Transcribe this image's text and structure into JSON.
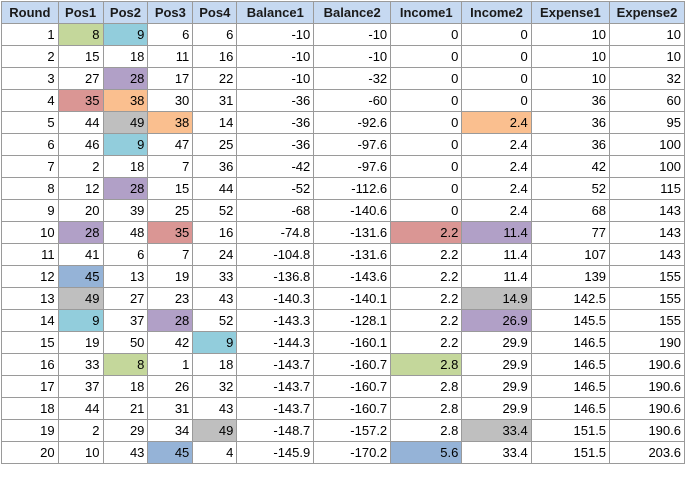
{
  "colors": {
    "header_bg": "#c6d9f1",
    "green": "#c4d79b",
    "cyan": "#92cddc",
    "purple": "#b1a0c7",
    "red": "#da9694",
    "orange": "#fabf8f",
    "gray": "#bfbfbf",
    "blue": "#95b3d7"
  },
  "sheet": {
    "columns": [
      "Round",
      "Pos1",
      "Pos2",
      "Pos3",
      "Pos4",
      "Balance1",
      "Balance2",
      "Income1",
      "Income2",
      "Expense1",
      "Expense2"
    ],
    "rows": [
      [
        "1",
        "8",
        "9",
        "6",
        "6",
        "-10",
        "-10",
        "0",
        "0",
        "10",
        "10"
      ],
      [
        "2",
        "15",
        "18",
        "11",
        "16",
        "-10",
        "-10",
        "0",
        "0",
        "10",
        "10"
      ],
      [
        "3",
        "27",
        "28",
        "17",
        "22",
        "-10",
        "-32",
        "0",
        "0",
        "10",
        "32"
      ],
      [
        "4",
        "35",
        "38",
        "30",
        "31",
        "-36",
        "-60",
        "0",
        "0",
        "36",
        "60"
      ],
      [
        "5",
        "44",
        "49",
        "38",
        "14",
        "-36",
        "-92.6",
        "0",
        "2.4",
        "36",
        "95"
      ],
      [
        "6",
        "46",
        "9",
        "47",
        "25",
        "-36",
        "-97.6",
        "0",
        "2.4",
        "36",
        "100"
      ],
      [
        "7",
        "2",
        "18",
        "7",
        "36",
        "-42",
        "-97.6",
        "0",
        "2.4",
        "42",
        "100"
      ],
      [
        "8",
        "12",
        "28",
        "15",
        "44",
        "-52",
        "-112.6",
        "0",
        "2.4",
        "52",
        "115"
      ],
      [
        "9",
        "20",
        "39",
        "25",
        "52",
        "-68",
        "-140.6",
        "0",
        "2.4",
        "68",
        "143"
      ],
      [
        "10",
        "28",
        "48",
        "35",
        "16",
        "-74.8",
        "-131.6",
        "2.2",
        "11.4",
        "77",
        "143"
      ],
      [
        "11",
        "41",
        "6",
        "7",
        "24",
        "-104.8",
        "-131.6",
        "2.2",
        "11.4",
        "107",
        "143"
      ],
      [
        "12",
        "45",
        "13",
        "19",
        "33",
        "-136.8",
        "-143.6",
        "2.2",
        "11.4",
        "139",
        "155"
      ],
      [
        "13",
        "49",
        "27",
        "23",
        "43",
        "-140.3",
        "-140.1",
        "2.2",
        "14.9",
        "142.5",
        "155"
      ],
      [
        "14",
        "9",
        "37",
        "28",
        "52",
        "-143.3",
        "-128.1",
        "2.2",
        "26.9",
        "145.5",
        "155"
      ],
      [
        "15",
        "19",
        "50",
        "42",
        "9",
        "-144.3",
        "-160.1",
        "2.2",
        "29.9",
        "146.5",
        "190"
      ],
      [
        "16",
        "33",
        "8",
        "1",
        "18",
        "-143.7",
        "-160.7",
        "2.8",
        "29.9",
        "146.5",
        "190.6"
      ],
      [
        "17",
        "37",
        "18",
        "26",
        "32",
        "-143.7",
        "-160.7",
        "2.8",
        "29.9",
        "146.5",
        "190.6"
      ],
      [
        "18",
        "44",
        "21",
        "31",
        "43",
        "-143.7",
        "-160.7",
        "2.8",
        "29.9",
        "146.5",
        "190.6"
      ],
      [
        "19",
        "2",
        "29",
        "34",
        "49",
        "-148.7",
        "-157.2",
        "2.8",
        "33.4",
        "151.5",
        "190.6"
      ],
      [
        "20",
        "10",
        "43",
        "45",
        "4",
        "-145.9",
        "-170.2",
        "5.6",
        "33.4",
        "151.5",
        "203.6"
      ]
    ],
    "highlights": [
      {
        "row": 0,
        "col": 1,
        "color": "green"
      },
      {
        "row": 0,
        "col": 2,
        "color": "cyan"
      },
      {
        "row": 2,
        "col": 2,
        "color": "purple"
      },
      {
        "row": 3,
        "col": 1,
        "color": "red"
      },
      {
        "row": 3,
        "col": 2,
        "color": "orange"
      },
      {
        "row": 4,
        "col": 2,
        "color": "gray"
      },
      {
        "row": 4,
        "col": 3,
        "color": "orange"
      },
      {
        "row": 4,
        "col": 8,
        "color": "orange"
      },
      {
        "row": 5,
        "col": 2,
        "color": "cyan"
      },
      {
        "row": 7,
        "col": 2,
        "color": "purple"
      },
      {
        "row": 9,
        "col": 1,
        "color": "purple"
      },
      {
        "row": 9,
        "col": 3,
        "color": "red"
      },
      {
        "row": 9,
        "col": 7,
        "color": "red"
      },
      {
        "row": 9,
        "col": 8,
        "color": "purple"
      },
      {
        "row": 11,
        "col": 1,
        "color": "blue"
      },
      {
        "row": 12,
        "col": 1,
        "color": "gray"
      },
      {
        "row": 12,
        "col": 8,
        "color": "gray"
      },
      {
        "row": 13,
        "col": 1,
        "color": "cyan"
      },
      {
        "row": 13,
        "col": 3,
        "color": "purple"
      },
      {
        "row": 13,
        "col": 8,
        "color": "purple"
      },
      {
        "row": 14,
        "col": 4,
        "color": "cyan"
      },
      {
        "row": 15,
        "col": 2,
        "color": "green"
      },
      {
        "row": 15,
        "col": 7,
        "color": "green"
      },
      {
        "row": 18,
        "col": 4,
        "color": "gray"
      },
      {
        "row": 18,
        "col": 8,
        "color": "gray"
      },
      {
        "row": 19,
        "col": 3,
        "color": "blue"
      },
      {
        "row": 19,
        "col": 7,
        "color": "blue"
      }
    ]
  }
}
